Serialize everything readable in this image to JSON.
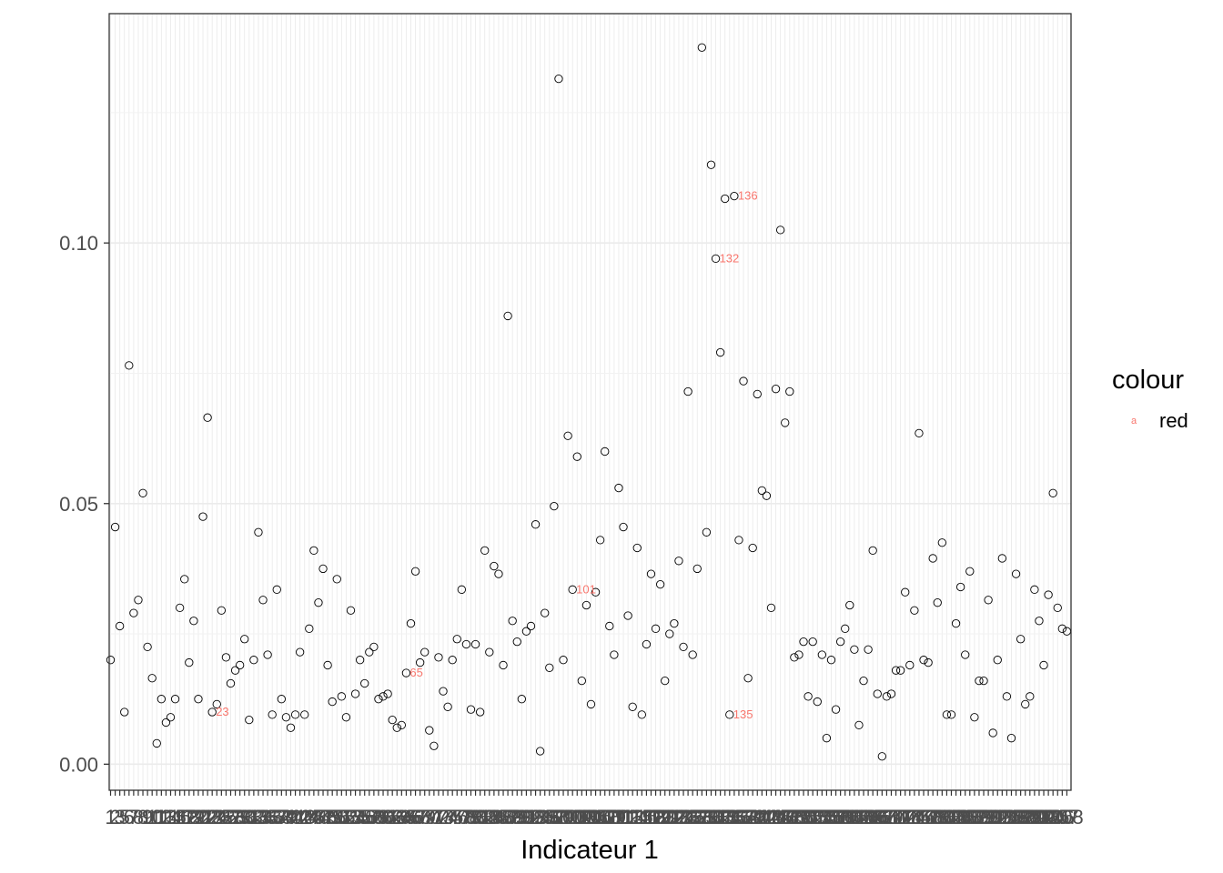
{
  "chart_data": {
    "type": "scatter",
    "xlabel": "Indicateur 1",
    "ylabel": "",
    "ylim": [
      -0.005,
      0.144
    ],
    "yticks": [
      0.0,
      0.05,
      0.1
    ],
    "ytick_labels": [
      "0.00",
      "0.05",
      "0.10"
    ],
    "grid": true,
    "legend_position": "right",
    "legend": {
      "title": "colour",
      "entries": [
        {
          "key_glyph": "a",
          "label": "red",
          "color": "#F8766D"
        }
      ]
    },
    "point_color": "#000000",
    "label_color": "#F8766D",
    "x_count": 208,
    "x_tick_labels_visible_start": [
      "1",
      "2",
      "3",
      "5",
      "6",
      "7",
      "8"
    ],
    "x_tick_label_last": "208",
    "values": [
      0.02,
      0.0455,
      0.0265,
      0.01,
      0.0765,
      0.029,
      0.0315,
      0.052,
      0.0225,
      0.0165,
      0.004,
      0.0125,
      0.008,
      0.009,
      0.0125,
      0.03,
      0.0355,
      0.0195,
      0.0275,
      0.0125,
      0.0475,
      0.0665,
      0.01,
      0.0115,
      0.0295,
      0.0205,
      0.0155,
      0.018,
      0.019,
      0.024,
      0.0085,
      0.02,
      0.0445,
      0.0315,
      0.021,
      0.0095,
      0.0335,
      0.0125,
      0.009,
      0.007,
      0.0095,
      0.0215,
      0.0095,
      0.026,
      0.041,
      0.031,
      0.0375,
      0.019,
      0.012,
      0.0355,
      0.013,
      0.009,
      0.0295,
      0.0135,
      0.02,
      0.0155,
      0.0215,
      0.0225,
      0.0125,
      0.013,
      0.0135,
      0.0085,
      0.007,
      0.0075,
      0.0175,
      0.027,
      0.037,
      0.0195,
      0.0215,
      0.0065,
      0.0035,
      0.0205,
      0.014,
      0.011,
      0.02,
      0.024,
      0.0335,
      0.023,
      0.0105,
      0.023,
      0.01,
      0.041,
      0.0215,
      0.038,
      0.0365,
      0.019,
      0.086,
      0.0275,
      0.0235,
      0.0125,
      0.0255,
      0.0265,
      0.046,
      0.0025,
      0.029,
      0.0185,
      0.0495,
      0.1315,
      0.02,
      0.063,
      0.0335,
      0.059,
      0.016,
      0.0305,
      0.0115,
      0.033,
      0.043,
      0.06,
      0.0265,
      0.021,
      0.053,
      0.0455,
      0.0285,
      0.011,
      0.0415,
      0.0095,
      0.023,
      0.0365,
      0.026,
      0.0345,
      0.016,
      0.025,
      0.027,
      0.039,
      0.0225,
      0.0715,
      0.021,
      0.0375,
      0.1375,
      0.0445,
      0.115,
      0.097,
      0.079,
      0.1085,
      0.0095,
      0.109,
      0.043,
      0.0735,
      0.0165,
      0.0415,
      0.071,
      0.0525,
      0.0515,
      0.03,
      0.072,
      0.1025,
      0.0655,
      0.0715,
      0.0205,
      0.021,
      0.0235,
      0.013,
      0.0235,
      0.012,
      0.021,
      0.005,
      0.02,
      0.0105,
      0.0235,
      0.026,
      0.0305,
      0.022,
      0.0075,
      0.016,
      0.022,
      0.041,
      0.0135,
      0.0015,
      0.013,
      0.0135,
      0.018,
      0.018,
      0.033,
      0.019,
      0.0295,
      0.0635,
      0.02,
      0.0195,
      0.0395,
      0.031,
      0.0425,
      0.0095,
      0.0095,
      0.027,
      0.034,
      0.021,
      0.037,
      0.009,
      0.016,
      0.016,
      0.0315,
      0.006,
      0.02,
      0.0395,
      0.013,
      0.005,
      0.0365,
      0.024,
      0.0115,
      0.013,
      0.0335,
      0.0275,
      0.019,
      0.0325,
      0.052,
      0.03,
      0.026,
      0.0255
    ],
    "labels": [
      {
        "index": 23,
        "text": "23"
      },
      {
        "index": 65,
        "text": "65"
      },
      {
        "index": 101,
        "text": "101"
      },
      {
        "index": 132,
        "text": "132"
      },
      {
        "index": 135,
        "text": "135"
      },
      {
        "index": 136,
        "text": "136"
      }
    ]
  }
}
